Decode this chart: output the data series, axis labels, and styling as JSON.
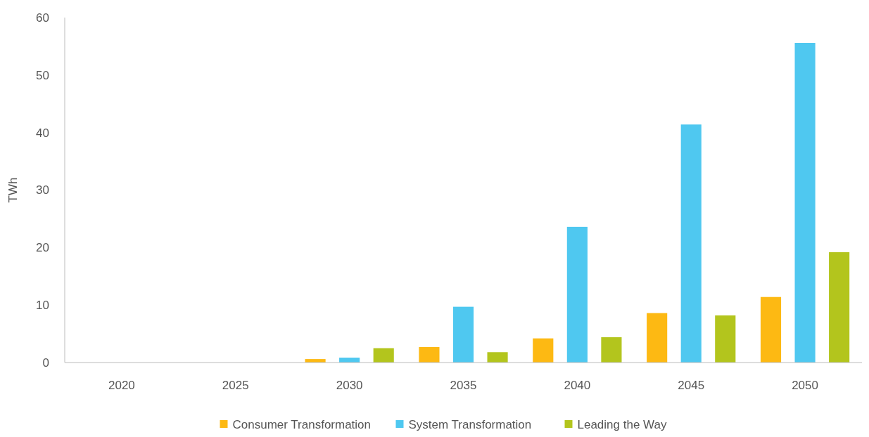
{
  "chart_data": {
    "type": "bar",
    "ylabel": "TWh",
    "categories": [
      "2020",
      "2025",
      "2030",
      "2035",
      "2040",
      "2045",
      "2050"
    ],
    "series": [
      {
        "name": "Consumer Transformation",
        "color": "#fdb913",
        "values": [
          0,
          0,
          0.6,
          2.7,
          4.2,
          8.6,
          11.4
        ]
      },
      {
        "name": "System Transformation",
        "color": "#4fc8f0",
        "values": [
          0,
          0,
          0.85,
          9.7,
          23.6,
          41.4,
          55.6
        ]
      },
      {
        "name": "Leading the Way",
        "color": "#b3c51d",
        "values": [
          0,
          0,
          2.5,
          1.8,
          4.4,
          8.2,
          19.2
        ]
      }
    ],
    "ylim": [
      0,
      60
    ],
    "yticks": [
      0,
      10,
      20,
      30,
      40,
      50,
      60
    ],
    "grid": false,
    "legend": "bottom"
  }
}
